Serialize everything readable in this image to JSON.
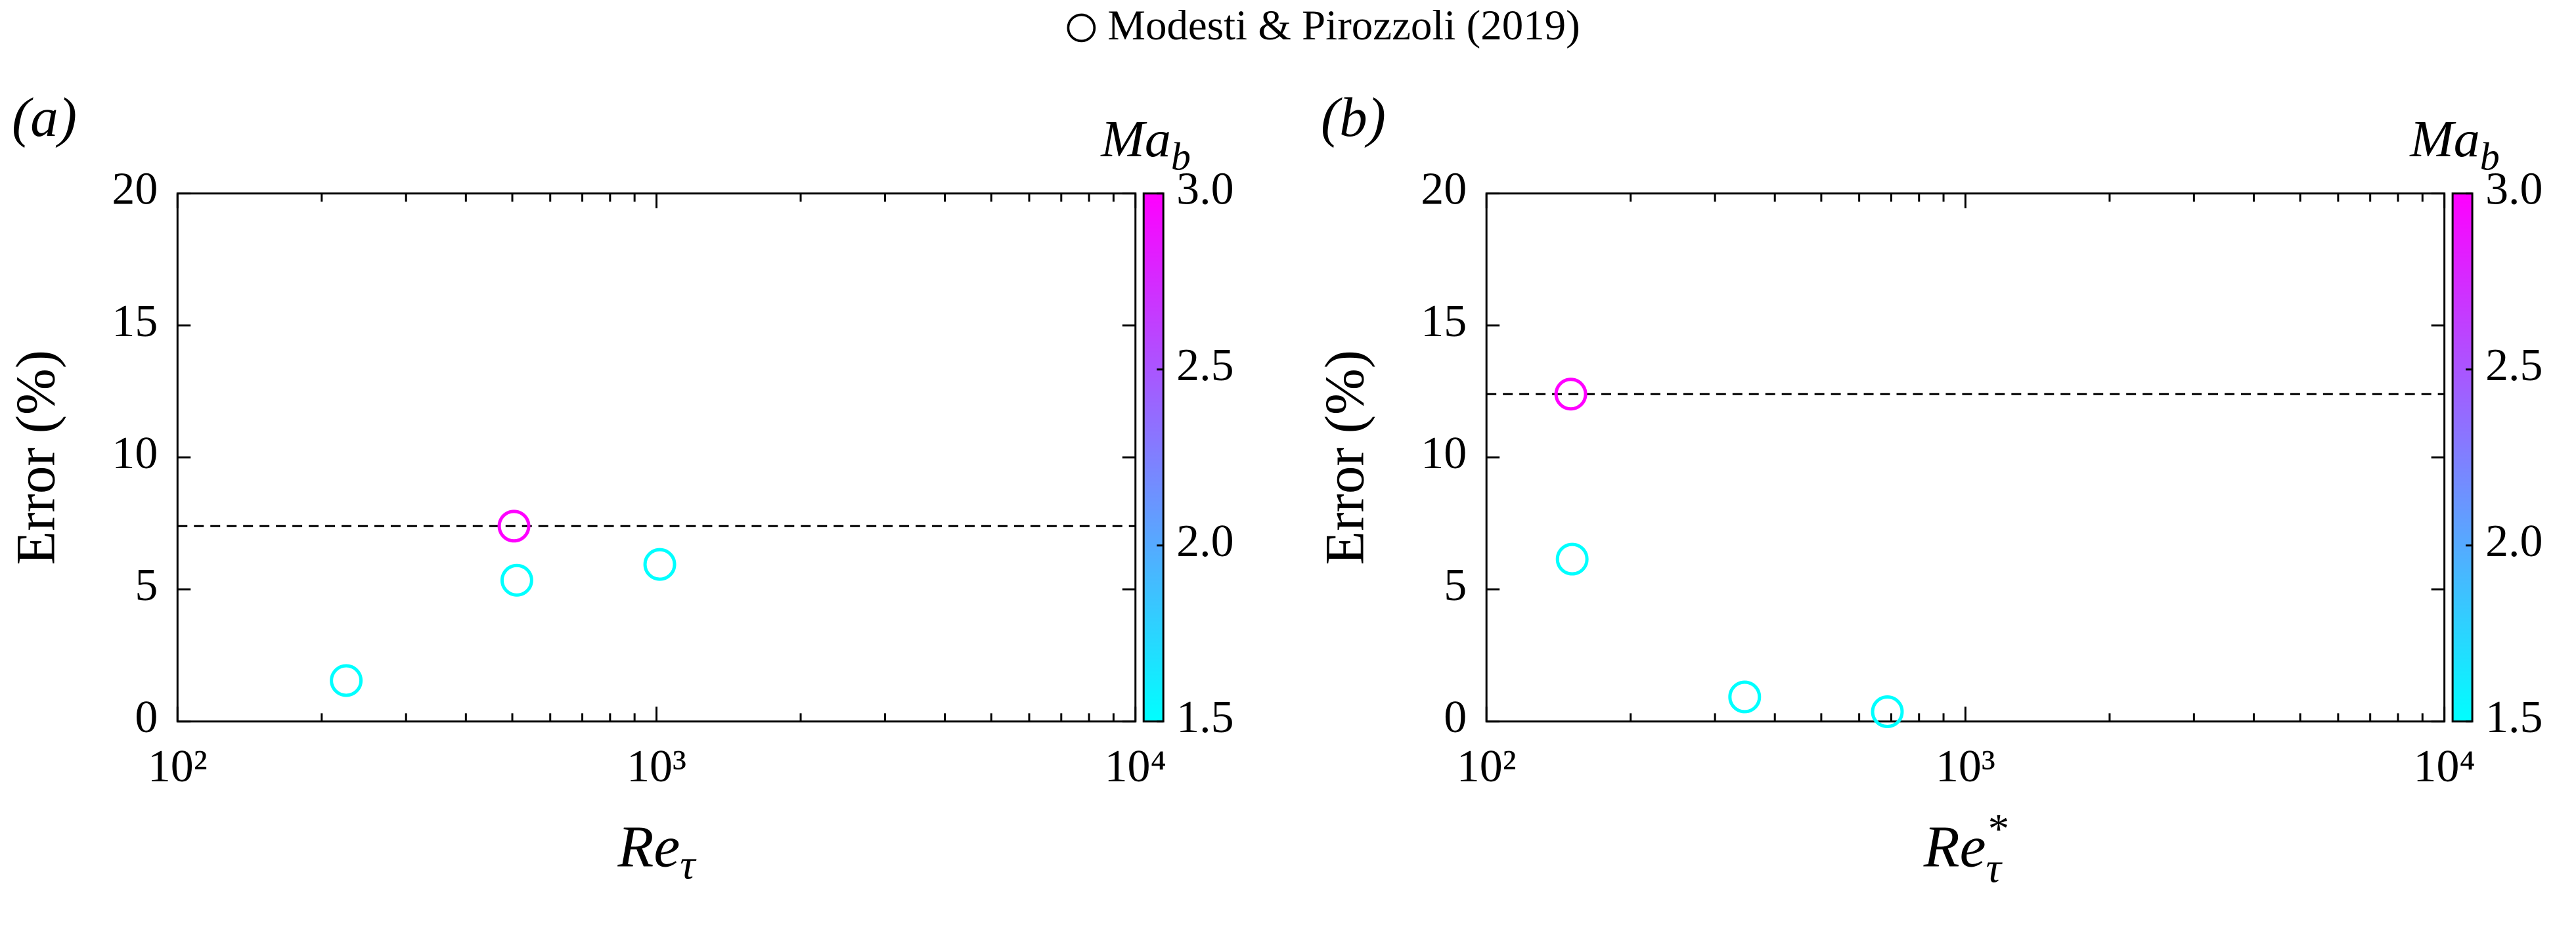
{
  "chart_data": [
    {
      "type": "scatter",
      "panel_label": "(a)",
      "xlabel": {
        "text": "Re",
        "sub": "τ"
      },
      "ylabel": "Error (%)",
      "xlog": true,
      "xlim": [
        100,
        10000
      ],
      "xticks": [
        {
          "value": 100,
          "label": "10²"
        },
        {
          "value": 1000,
          "label": "10³"
        },
        {
          "value": 10000,
          "label": "10⁴"
        }
      ],
      "ylim": [
        0,
        20
      ],
      "yticks": [
        0,
        5,
        10,
        15,
        20
      ],
      "hline": 7.4,
      "series": [
        {
          "name": "Modesti & Pirozzoli (2019)",
          "marker": "circle",
          "x": [
            225,
            504,
            511,
            1016
          ],
          "values": [
            1.55,
            7.4,
            5.35,
            5.95
          ],
          "color_values": [
            1.5,
            3.0,
            1.5,
            1.5
          ]
        }
      ],
      "colorbar": {
        "label": {
          "text": "Ma",
          "sub": "b"
        },
        "colormap": "cool",
        "clim": [
          1.5,
          3.0
        ],
        "ticks": [
          1.5,
          {
            "value": 2,
            "label": "2.0"
          },
          2.5,
          {
            "value": 3,
            "label": "3.0"
          }
        ]
      }
    },
    {
      "type": "scatter",
      "panel_label": "(b)",
      "xlabel": {
        "text": "Re",
        "sup": "*",
        "sub": "τ"
      },
      "ylabel": "Error (%)",
      "xlog": true,
      "xlim": [
        100,
        10000
      ],
      "xticks": [
        {
          "value": 100,
          "label": "10²"
        },
        {
          "value": 1000,
          "label": "10³"
        },
        {
          "value": 10000,
          "label": "10⁴"
        }
      ],
      "ylim": [
        0,
        20
      ],
      "yticks": [
        0,
        5,
        10,
        15,
        20
      ],
      "hline": 12.4,
      "series": [
        {
          "marker": "circle",
          "x": [
            151,
            150,
            346,
            687
          ],
          "values": [
            6.15,
            12.4,
            0.93,
            0.37
          ],
          "color_values": [
            1.5,
            3.0,
            1.5,
            1.5
          ]
        }
      ],
      "colorbar": {
        "label": {
          "text": "Ma",
          "sub": "b"
        },
        "colormap": "cool",
        "clim": [
          1.5,
          3.0
        ],
        "ticks": [
          1.5,
          {
            "value": 2,
            "label": "2.0"
          },
          2.5,
          {
            "value": 3,
            "label": "3.0"
          }
        ]
      }
    }
  ]
}
